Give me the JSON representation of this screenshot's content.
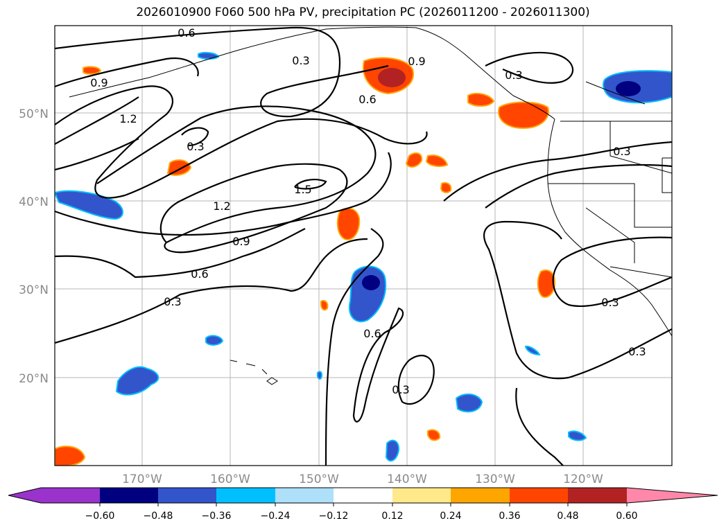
{
  "title": "2026010900 F060 500 hPa PV, precipitation PC (2026011200 - 2026011300)",
  "lat_labels": [
    "50°N",
    "40°N",
    "30°N",
    "20°N"
  ],
  "lon_labels": [
    "170°W",
    "160°W",
    "150°W",
    "140°W",
    "130°W",
    "120°W"
  ],
  "contour_labels": [
    "0.6",
    "0.3",
    "0.9",
    "1.2",
    "0.3",
    "1.2",
    "1.5",
    "0.9",
    "0.6",
    "0.3",
    "0.9",
    "0.6",
    "0.3",
    "0.6",
    "0.3",
    "0.3",
    "0.3"
  ],
  "colorbar": {
    "colors": [
      "#9933cc",
      "#000080",
      "#3355cc",
      "#00bfff",
      "#aee0fa",
      "#ffffff",
      "#ffe98a",
      "#ffa500",
      "#ff4500",
      "#b22222",
      "#ff88aa"
    ],
    "tick_labels": [
      "−0.60",
      "−0.48",
      "−0.36",
      "−0.24",
      "−0.12",
      "0.12",
      "0.24",
      "0.36",
      "0.48",
      "0.60"
    ]
  }
}
